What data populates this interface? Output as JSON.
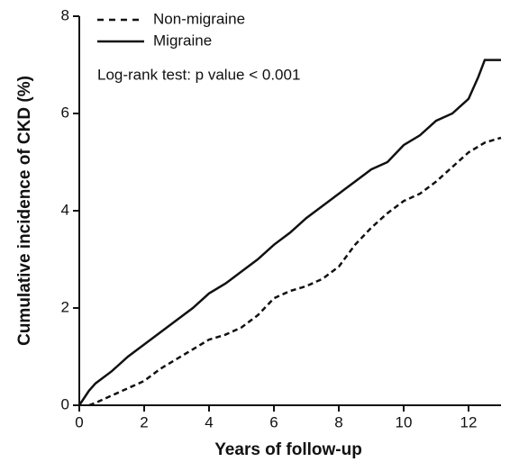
{
  "chart_data": {
    "type": "line",
    "xlabel": "Years of follow-up",
    "ylabel": "Cumulative incidence of CKD (%)",
    "annotation": "Log-rank test: p value < 0.001",
    "xlim": [
      0,
      13
    ],
    "xticks": [
      0,
      2,
      4,
      6,
      8,
      10,
      12
    ],
    "ylim": [
      0,
      8
    ],
    "yticks": [
      0,
      2,
      4,
      6,
      8
    ],
    "series": [
      {
        "name": "Non-migraine",
        "color": "#111111",
        "dash": true,
        "x": [
          0.3,
          0.5,
          1,
          1.5,
          2,
          2.5,
          3,
          3.5,
          4,
          4.5,
          5,
          5.5,
          6,
          6.5,
          7,
          7.5,
          8,
          8.5,
          9,
          9.5,
          10,
          10.5,
          11,
          11.5,
          12,
          12.5,
          13
        ],
        "values": [
          0,
          0.05,
          0.2,
          0.35,
          0.5,
          0.75,
          0.95,
          1.15,
          1.35,
          1.45,
          1.6,
          1.85,
          2.2,
          2.35,
          2.45,
          2.6,
          2.85,
          3.3,
          3.65,
          3.95,
          4.2,
          4.35,
          4.6,
          4.9,
          5.2,
          5.4,
          5.5
        ]
      },
      {
        "name": "Migraine",
        "color": "#111111",
        "dash": false,
        "x": [
          0,
          0.3,
          0.5,
          1,
          1.5,
          2,
          2.5,
          3,
          3.5,
          4,
          4.5,
          5,
          5.5,
          6,
          6.5,
          7,
          7.5,
          8,
          8.5,
          9,
          9.5,
          10,
          10.5,
          11,
          11.5,
          12,
          12.3,
          12.5,
          13
        ],
        "values": [
          0,
          0.3,
          0.45,
          0.7,
          1.0,
          1.25,
          1.5,
          1.75,
          2.0,
          2.3,
          2.5,
          2.75,
          3.0,
          3.3,
          3.55,
          3.85,
          4.1,
          4.35,
          4.6,
          4.85,
          5.0,
          5.35,
          5.55,
          5.85,
          6.0,
          6.3,
          6.75,
          7.1,
          7.1
        ]
      }
    ]
  }
}
